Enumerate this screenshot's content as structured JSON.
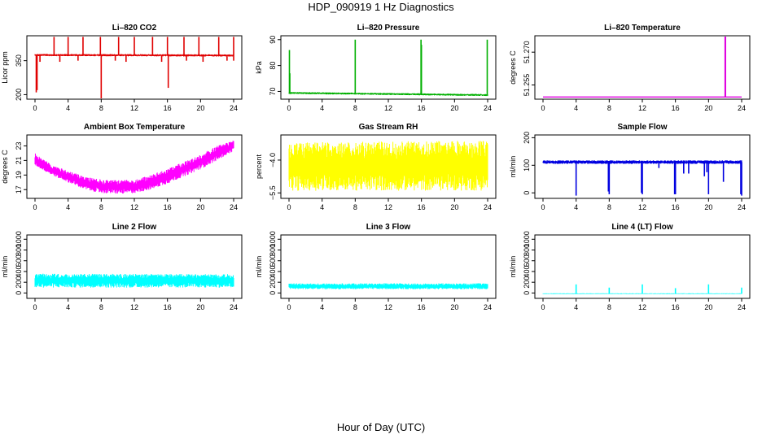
{
  "figure": {
    "title": "HDP_090919  1 Hz Diagnostics",
    "xlabel": "Hour of Day (UTC)"
  },
  "chart_data": [
    {
      "type": "line",
      "title": "Li–820 CO2",
      "ylabel": "Licor ppm",
      "color": "#e00000",
      "xlim": [
        0,
        24
      ],
      "ylim": [
        180,
        460
      ],
      "xticks": [
        0,
        4,
        8,
        12,
        16,
        20,
        24
      ],
      "xticklabels": [
        "0",
        "4",
        "8",
        "12",
        "16",
        "20",
        "24"
      ],
      "yticks": [
        200,
        350
      ],
      "yticklabels": [
        "200",
        "350"
      ],
      "series": [
        {
          "band": [
            [
              0.0,
              370,
              380
            ],
            [
              24.0,
              368,
              378
            ]
          ],
          "spikes": [
            [
              0.15,
              210
            ],
            [
              0.25,
              220
            ],
            [
              8.0,
              180
            ],
            [
              16.1,
              230
            ],
            [
              0.6,
              345
            ],
            [
              3.0,
              345
            ],
            [
              5.2,
              350
            ],
            [
              9.7,
              350
            ],
            [
              11.0,
              345
            ],
            [
              15.3,
              345
            ],
            [
              18.3,
              350
            ],
            [
              20.3,
              345
            ],
            [
              23.2,
              350
            ],
            [
              24.0,
              350
            ],
            [
              2.3,
              455
            ],
            [
              4.0,
              455
            ],
            [
              5.8,
              455
            ],
            [
              7.9,
              455
            ],
            [
              10.1,
              455
            ],
            [
              12.0,
              455
            ],
            [
              14.2,
              455
            ],
            [
              16.0,
              455
            ],
            [
              18.0,
              455
            ],
            [
              19.8,
              455
            ],
            [
              22.2,
              455
            ],
            [
              24.0,
              455
            ]
          ]
        }
      ]
    },
    {
      "type": "line",
      "title": "Li–820 Pressure",
      "ylabel": "kPa",
      "color": "#00b000",
      "xlim": [
        0,
        24
      ],
      "ylim": [
        67,
        91.5
      ],
      "xticks": [
        0,
        4,
        8,
        12,
        16,
        20,
        24
      ],
      "xticklabels": [
        "0",
        "4",
        "8",
        "12",
        "16",
        "20",
        "24"
      ],
      "yticks": [
        70,
        80,
        90
      ],
      "yticklabels": [
        "70",
        "80",
        "90"
      ],
      "series": [
        {
          "band": [
            [
              0.0,
              69.0,
              69.8
            ],
            [
              24.0,
              68.2,
              69.0
            ]
          ],
          "spikes": [
            [
              0.05,
              86
            ],
            [
              0.1,
              77
            ],
            [
              8.0,
              90
            ],
            [
              15.95,
              90
            ],
            [
              16.0,
              88
            ],
            [
              23.95,
              90
            ]
          ]
        }
      ]
    },
    {
      "type": "line",
      "title": "Li–820 Temperature",
      "ylabel": "degrees C",
      "color": "#e000e0",
      "xlim": [
        0,
        24
      ],
      "ylim": [
        51.2485,
        51.2775
      ],
      "xticks": [
        0,
        4,
        8,
        12,
        16,
        20,
        24
      ],
      "xticklabels": [
        "0",
        "4",
        "8",
        "12",
        "16",
        "20",
        "24"
      ],
      "yticks": [
        51.255,
        51.27
      ],
      "yticklabels": [
        "51.255",
        "51.270"
      ],
      "series": [
        {
          "band": [
            [
              0.0,
              51.2495,
              51.2495
            ],
            [
              24.0,
              51.2495,
              51.2495
            ]
          ],
          "spikes": [
            [
              22.0,
              51.2775
            ],
            [
              22.05,
              51.2775
            ]
          ]
        }
      ]
    },
    {
      "type": "line",
      "title": "Ambient Box Temperature",
      "ylabel": "degrees C",
      "color": "#ff00ff",
      "xlim": [
        0,
        24
      ],
      "ylim": [
        15.8,
        24.5
      ],
      "xticks": [
        0,
        4,
        8,
        12,
        16,
        20,
        24
      ],
      "xticklabels": [
        "0",
        "4",
        "8",
        "12",
        "16",
        "20",
        "24"
      ],
      "yticks": [
        17,
        19,
        21,
        23
      ],
      "yticklabels": [
        "17",
        "19",
        "21",
        "23"
      ],
      "series": [
        {
          "band": [
            [
              0.0,
              20.3,
              22.0
            ],
            [
              2.0,
              19.0,
              20.4
            ],
            [
              4.0,
              18.0,
              19.6
            ],
            [
              6.0,
              17.0,
              18.8
            ],
            [
              8.0,
              16.5,
              18.4
            ],
            [
              10.0,
              16.4,
              18.3
            ],
            [
              12.0,
              16.5,
              18.4
            ],
            [
              14.0,
              17.0,
              19.0
            ],
            [
              16.0,
              17.8,
              19.9
            ],
            [
              18.0,
              18.8,
              20.8
            ],
            [
              20.0,
              19.8,
              21.8
            ],
            [
              22.0,
              21.0,
              23.0
            ],
            [
              24.0,
              22.3,
              23.8
            ]
          ],
          "spikes": []
        }
      ]
    },
    {
      "type": "line",
      "title": "Gas Stream RH",
      "ylabel": "percent",
      "color": "#ffff00",
      "xlim": [
        0,
        24
      ],
      "ylim": [
        -5.75,
        -2.85
      ],
      "xticks": [
        0,
        4,
        8,
        12,
        16,
        20,
        24
      ],
      "xticklabels": [
        "0",
        "4",
        "8",
        "12",
        "16",
        "20",
        "24"
      ],
      "yticks": [
        -5.5,
        -4.0
      ],
      "yticklabels": [
        "−5.5",
        "−4.0"
      ],
      "series": [
        {
          "band": [
            [
              0.0,
              -5.4,
              -3.2
            ],
            [
              24.0,
              -5.4,
              -3.1
            ]
          ],
          "spikes": []
        }
      ]
    },
    {
      "type": "line",
      "title": "Sample Flow",
      "ylabel": "ml/min",
      "color": "#0000e0",
      "xlim": [
        0,
        24
      ],
      "ylim": [
        -20,
        210
      ],
      "xticks": [
        0,
        4,
        8,
        12,
        16,
        20,
        24
      ],
      "xticklabels": [
        "0",
        "4",
        "8",
        "12",
        "16",
        "20",
        "24"
      ],
      "yticks": [
        0,
        100,
        200
      ],
      "yticklabels": [
        "0",
        "100",
        "200"
      ],
      "series": [
        {
          "band": [
            [
              0.0,
              105,
              118
            ],
            [
              24.0,
              105,
              118
            ]
          ],
          "spikes": [
            [
              4.0,
              -10
            ],
            [
              7.9,
              5
            ],
            [
              8.0,
              -5
            ],
            [
              11.9,
              0
            ],
            [
              12.0,
              -5
            ],
            [
              14.0,
              90
            ],
            [
              15.9,
              -5
            ],
            [
              16.0,
              -5
            ],
            [
              17.0,
              70
            ],
            [
              17.6,
              70
            ],
            [
              19.5,
              60
            ],
            [
              19.8,
              75
            ],
            [
              20.0,
              -5
            ],
            [
              21.8,
              40
            ],
            [
              23.9,
              -5
            ],
            [
              24.0,
              -10
            ]
          ]
        }
      ]
    },
    {
      "type": "line",
      "title": "Line 2 Flow",
      "ylabel": "ml/min",
      "color": "#00ffff",
      "xlim": [
        0,
        24
      ],
      "ylim": [
        -100,
        1080
      ],
      "xticks": [
        0,
        4,
        8,
        12,
        16,
        20,
        24
      ],
      "xticklabels": [
        "0",
        "4",
        "8",
        "12",
        "16",
        "20",
        "24"
      ],
      "yticks": [
        0,
        200,
        400,
        600,
        800,
        1000
      ],
      "yticklabels": [
        "0",
        "200",
        "400",
        "600",
        "800",
        "1000"
      ],
      "series": [
        {
          "band": [
            [
              0.0,
              100,
              360
            ],
            [
              24.0,
              100,
              350
            ]
          ],
          "spikes": []
        }
      ]
    },
    {
      "type": "line",
      "title": "Line 3 Flow",
      "ylabel": "ml/min",
      "color": "#00ffff",
      "xlim": [
        0,
        24
      ],
      "ylim": [
        -100,
        1080
      ],
      "xticks": [
        0,
        4,
        8,
        12,
        16,
        20,
        24
      ],
      "xticklabels": [
        "0",
        "4",
        "8",
        "12",
        "16",
        "20",
        "24"
      ],
      "yticks": [
        0,
        200,
        400,
        600,
        800,
        1000
      ],
      "yticklabels": [
        "0",
        "200",
        "400",
        "600",
        "800",
        "1000"
      ],
      "series": [
        {
          "band": [
            [
              0.0,
              70,
              180
            ],
            [
              24.0,
              70,
              180
            ]
          ],
          "spikes": []
        }
      ]
    },
    {
      "type": "line",
      "title": "Line 4 (LT) Flow",
      "ylabel": "ml/min",
      "color": "#00ffff",
      "xlim": [
        0,
        24
      ],
      "ylim": [
        -100,
        1080
      ],
      "xticks": [
        0,
        4,
        8,
        12,
        16,
        20,
        24
      ],
      "xticklabels": [
        "0",
        "4",
        "8",
        "12",
        "16",
        "20",
        "24"
      ],
      "yticks": [
        0,
        200,
        400,
        600,
        800,
        1000
      ],
      "yticklabels": [
        "0",
        "200",
        "400",
        "600",
        "800",
        "1000"
      ],
      "series": [
        {
          "band": [
            [
              0.0,
              -20,
              -5
            ],
            [
              24.0,
              -20,
              -5
            ]
          ],
          "spikes": [
            [
              4.0,
              160
            ],
            [
              8.0,
              100
            ],
            [
              12.0,
              160
            ],
            [
              16.0,
              90
            ],
            [
              20.0,
              160
            ],
            [
              24.0,
              100
            ]
          ]
        }
      ]
    }
  ]
}
